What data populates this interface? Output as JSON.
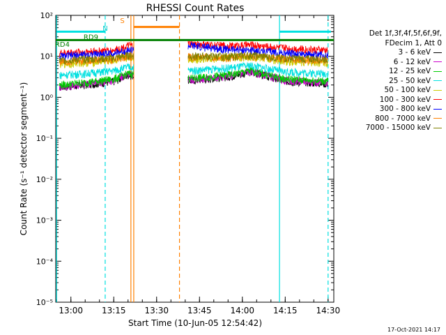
{
  "chart_data": {
    "type": "line",
    "title": "RHESSI Count Rates",
    "xlabel": "Start Time (10-Jun-05 12:54:42)",
    "ylabel": "Count Rate (s⁻¹ detector segment⁻¹)",
    "yscale": "log",
    "ylim": [
      1e-05,
      100
    ],
    "xlim": [
      "12:54:42",
      "14:32:00"
    ],
    "x_ticks": [
      "13:00",
      "13:15",
      "13:30",
      "13:45",
      "14:00",
      "14:15",
      "14:30"
    ],
    "y_ticks": [
      "10⁻⁵",
      "10⁻⁴",
      "10⁻³",
      "10⁻²",
      "10⁻¹",
      "10⁰",
      "10¹",
      "10²"
    ],
    "legend_header": [
      "Det 1f,3f,4f,5f,6f,9f,",
      "FDecim 1, Att 0"
    ],
    "legend_position": "right",
    "grid": false,
    "series": [
      {
        "name": "3 - 6 keV",
        "color": "#000000",
        "x": [
          "12:56",
          "13:05",
          "13:15",
          "13:20",
          "13:42",
          "13:55",
          "14:03",
          "14:15",
          "14:30"
        ],
        "y": [
          1.8,
          2.0,
          2.5,
          3.5,
          2.6,
          3.2,
          4.2,
          2.5,
          2.2
        ]
      },
      {
        "name": "6 - 12 keV",
        "color": "#cc00cc",
        "x": [
          "12:56",
          "13:05",
          "13:15",
          "13:20",
          "13:42",
          "13:55",
          "14:03",
          "14:15",
          "14:30"
        ],
        "y": [
          1.8,
          2.1,
          2.6,
          3.6,
          2.7,
          3.3,
          4.3,
          2.6,
          2.3
        ]
      },
      {
        "name": "12 - 25 keV",
        "color": "#00cc00",
        "x": [
          "12:56",
          "13:05",
          "13:15",
          "13:20",
          "13:42",
          "13:55",
          "14:03",
          "14:15",
          "14:30"
        ],
        "y": [
          2.0,
          2.3,
          2.8,
          3.8,
          2.9,
          3.5,
          4.5,
          2.8,
          2.5
        ]
      },
      {
        "name": "25 - 50 keV",
        "color": "#00e0e0",
        "x": [
          "12:56",
          "13:05",
          "13:15",
          "13:20",
          "13:42",
          "13:55",
          "14:03",
          "14:15",
          "14:30"
        ],
        "y": [
          3.5,
          3.8,
          4.5,
          5.5,
          4.5,
          5.2,
          6.0,
          4.2,
          3.8
        ]
      },
      {
        "name": "50 - 100 keV",
        "color": "#cccc00",
        "x": [
          "12:56",
          "13:05",
          "13:15",
          "13:20",
          "13:42",
          "13:55",
          "14:03",
          "14:15",
          "14:30"
        ],
        "y": [
          6.5,
          7.0,
          8.0,
          9.5,
          8.5,
          9.0,
          10.0,
          7.5,
          7.0
        ]
      },
      {
        "name": "100 - 300 keV",
        "color": "#ff0000",
        "x": [
          "12:56",
          "13:05",
          "13:15",
          "13:20",
          "13:42",
          "13:55",
          "14:03",
          "14:15",
          "14:30"
        ],
        "y": [
          12.0,
          13.0,
          14.0,
          18.0,
          20.0,
          18.0,
          19.0,
          16.0,
          14.0
        ]
      },
      {
        "name": "300 - 800 keV",
        "color": "#0000ff",
        "x": [
          "12:56",
          "13:05",
          "13:15",
          "13:20",
          "13:42",
          "13:55",
          "14:03",
          "14:15",
          "14:30"
        ],
        "y": [
          10.0,
          11.0,
          12.0,
          14.0,
          18.0,
          15.0,
          14.0,
          12.0,
          10.5
        ]
      },
      {
        "name": "800 - 7000 keV",
        "color": "#ff8000",
        "x": [
          "12:56",
          "13:05",
          "13:15",
          "13:20",
          "13:42",
          "13:55",
          "14:03",
          "14:15",
          "14:30"
        ],
        "y": [
          7.5,
          8.0,
          8.5,
          10.0,
          9.5,
          9.5,
          10.0,
          8.5,
          8.0
        ]
      },
      {
        "name": "7000 - 15000 keV",
        "color": "#808000",
        "x": [
          "12:56",
          "13:05",
          "13:15",
          "13:20",
          "13:42",
          "13:55",
          "14:03",
          "14:15",
          "14:30"
        ],
        "y": [
          8.0,
          8.5,
          9.0,
          10.5,
          10.0,
          10.0,
          10.5,
          9.0,
          8.5
        ]
      }
    ],
    "attenuator_line": {
      "color": "#008000",
      "y": 25
    },
    "annotations": [
      {
        "text": "N",
        "x": "13:12",
        "y": 42,
        "color": "#00cccc"
      },
      {
        "text": "S",
        "x": "13:18",
        "y": 65,
        "color": "#ff8000"
      },
      {
        "text": "RD4",
        "x": "12:57",
        "y": 17,
        "color": "#008000"
      },
      {
        "text": "RD9",
        "x": "13:07",
        "y": 26,
        "color": "#008000"
      }
    ],
    "vertical_lines": [
      {
        "x": "12:55",
        "color": "#00e0e0",
        "style": "solid"
      },
      {
        "x": "13:12",
        "color": "#00e0e0",
        "style": "dashed"
      },
      {
        "x": "13:21",
        "color": "#ff8000",
        "style": "solid"
      },
      {
        "x": "13:22",
        "color": "#ff8000",
        "style": "solid"
      },
      {
        "x": "13:38",
        "color": "#ff8000",
        "style": "dashed"
      },
      {
        "x": "14:13",
        "color": "#00e0e0",
        "style": "solid"
      },
      {
        "x": "14:30",
        "color": "#00e0e0",
        "style": "dashed"
      }
    ],
    "horizontal_bars": [
      {
        "x0": "12:55",
        "x1": "13:12",
        "y": 40,
        "color": "#00e0e0"
      },
      {
        "x0": "13:22",
        "x1": "13:38",
        "y": 52,
        "color": "#ff8000"
      },
      {
        "x0": "14:13",
        "x1": "14:31",
        "y": 40,
        "color": "#00e0e0"
      }
    ],
    "data_gap": [
      "13:22",
      "13:41"
    ]
  },
  "footer": "17-Oct-2021 14:17"
}
